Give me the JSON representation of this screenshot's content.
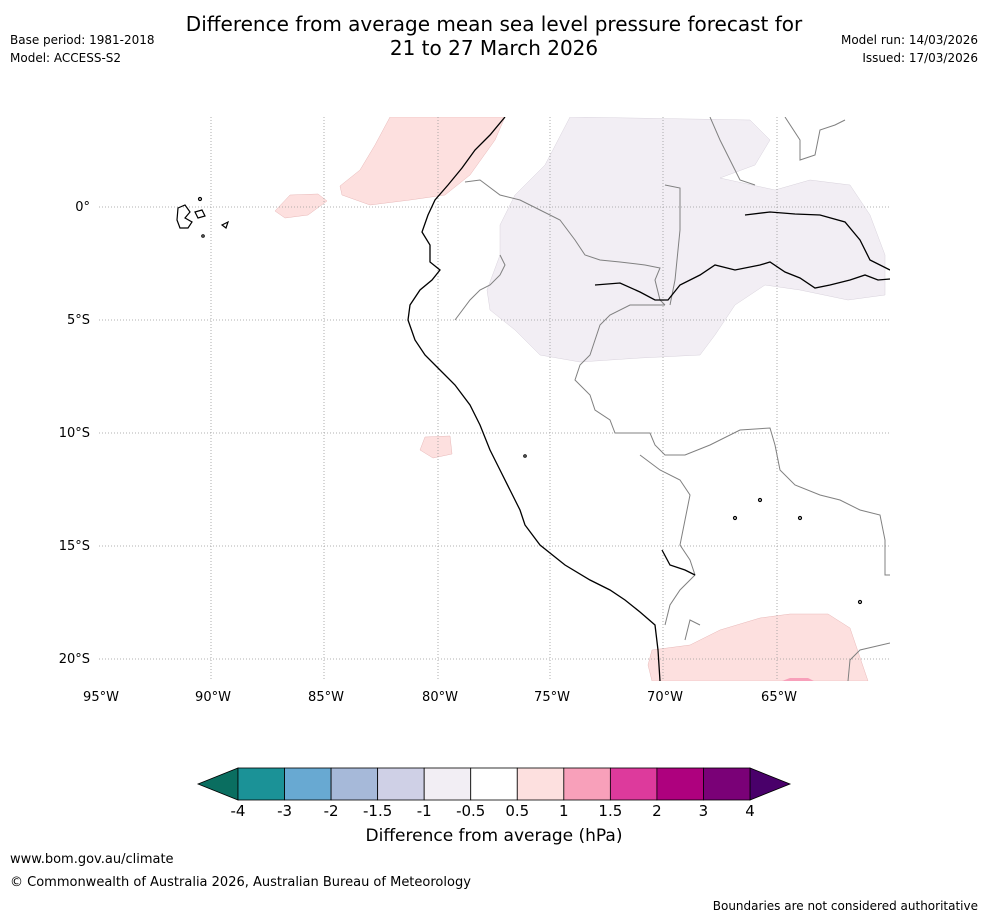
{
  "title_line1": "Difference from average mean sea level pressure forecast for",
  "title_line2": "21 to 27 March 2026",
  "meta_left": {
    "base_period": "Base period: 1981-2018",
    "model": "Model: ACCESS-S2"
  },
  "meta_right": {
    "model_run": "Model run: 14/03/2026",
    "issued": "Issued: 17/03/2026"
  },
  "map": {
    "lat_labels": [
      "0°",
      "5°S",
      "10°S",
      "15°S",
      "20°S"
    ],
    "lon_labels": [
      "95°W",
      "90°W",
      "85°W",
      "80°W",
      "75°W",
      "70°W",
      "65°W"
    ]
  },
  "colorbar": {
    "ticks": [
      "-4",
      "-3",
      "-2",
      "-1.5",
      "-1",
      "-0.5",
      "0.5",
      "1",
      "1.5",
      "2",
      "3",
      "4"
    ],
    "colors": [
      "#1b9297",
      "#68a9d2",
      "#a6b9d9",
      "#cfd0e6",
      "#f2eef4",
      "#ffffff",
      "#fde0df",
      "#f8a0ba",
      "#dd3a9c",
      "#ae017e",
      "#7a0177"
    ],
    "under_color": "#0a6e60",
    "over_color": "#49006a",
    "label": "Difference from average (hPa)"
  },
  "footer": {
    "website": "www.bom.gov.au/climate",
    "copyright": "© Commonwealth of Australia 2026, Australian Bureau of Meteorology",
    "disclaimer": "Boundaries are not considered authoritative"
  }
}
